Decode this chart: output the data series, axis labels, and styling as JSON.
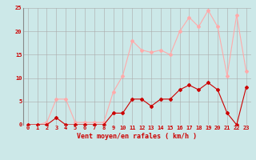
{
  "hours": [
    0,
    1,
    2,
    3,
    4,
    5,
    6,
    7,
    8,
    9,
    10,
    11,
    12,
    13,
    14,
    15,
    16,
    17,
    18,
    19,
    20,
    21,
    22,
    23
  ],
  "avg_wind": [
    0,
    0,
    0,
    1.5,
    0,
    0,
    0,
    0,
    0,
    2.5,
    2.5,
    5.5,
    5.5,
    4,
    5.5,
    5.5,
    7.5,
    8.5,
    7.5,
    9,
    7.5,
    2.5,
    0,
    8
  ],
  "gust_wind": [
    0,
    0,
    0.5,
    5.5,
    5.5,
    0.5,
    0.5,
    0.5,
    0.5,
    7,
    10.5,
    18,
    16,
    15.5,
    16,
    15,
    20,
    23,
    21,
    24.5,
    21,
    10.5,
    23.5,
    11.5
  ],
  "avg_color": "#cc0000",
  "gust_color": "#ffaaaa",
  "background_color": "#cce8e8",
  "grid_color": "#aaaaaa",
  "xlabel": "Vent moyen/en rafales ( km/h )",
  "ylim": [
    0,
    25
  ],
  "xlim": [
    -0.5,
    23.5
  ],
  "yticks": [
    0,
    5,
    10,
    15,
    20,
    25
  ],
  "xticks": [
    0,
    1,
    2,
    3,
    4,
    5,
    6,
    7,
    8,
    9,
    10,
    11,
    12,
    13,
    14,
    15,
    16,
    17,
    18,
    19,
    20,
    21,
    22,
    23
  ],
  "tick_fontsize": 5,
  "xlabel_fontsize": 6,
  "left_spine_color": "#888888"
}
